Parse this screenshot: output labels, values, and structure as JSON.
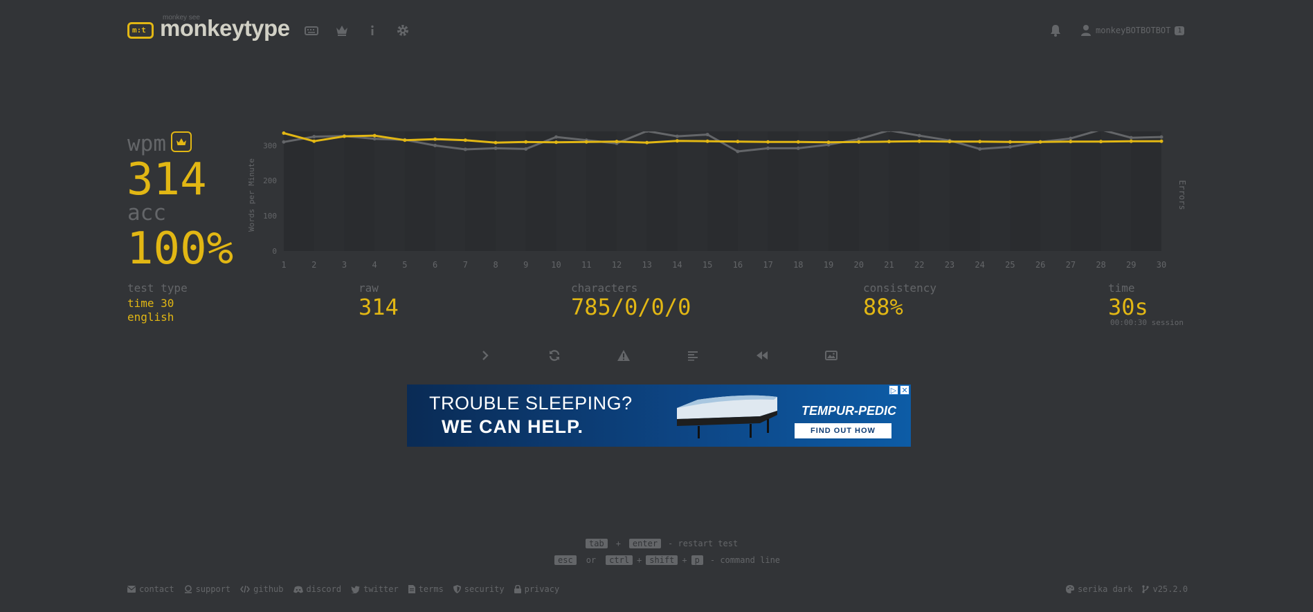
{
  "header": {
    "logo_sub": "monkey see",
    "logo_text": "monkeytype",
    "logo_mark": "m:t",
    "nav_icons": [
      "keyboard-icon",
      "crown-icon",
      "info-icon",
      "gear-icon"
    ],
    "username": "monkeyBOTBOTBOT",
    "user_badge": "1"
  },
  "result": {
    "wpm_label": "wpm",
    "wpm": "314",
    "acc_label": "acc",
    "acc": "100%",
    "test_type_label": "test type",
    "test_type_line1": "time 30",
    "test_type_line2": "english",
    "raw_label": "raw",
    "raw": "314",
    "characters_label": "characters",
    "characters": "785/0/0/0",
    "consistency_label": "consistency",
    "consistency": "88%",
    "time_label": "time",
    "time": "30s",
    "session": "00:00:30 session"
  },
  "chart_data": {
    "type": "line",
    "ylabel": "Words per Minute",
    "y2label": "Errors",
    "ylim": [
      0,
      340
    ],
    "yticks": [
      0,
      100,
      200,
      300
    ],
    "x": [
      1,
      2,
      3,
      4,
      5,
      6,
      7,
      8,
      9,
      10,
      11,
      12,
      13,
      14,
      15,
      16,
      17,
      18,
      19,
      20,
      21,
      22,
      23,
      24,
      25,
      26,
      27,
      28,
      29,
      30
    ],
    "series": [
      {
        "name": "wpm",
        "color": "#e2b714",
        "values": [
          335,
          312,
          326,
          328,
          315,
          318,
          315,
          308,
          310,
          309,
          310,
          311,
          308,
          313,
          312,
          311,
          310,
          310,
          309,
          310,
          311,
          312,
          311,
          311,
          310,
          310,
          311,
          311,
          312,
          312
        ]
      },
      {
        "name": "raw",
        "color": "#646669",
        "values": [
          310,
          325,
          327,
          319,
          316,
          300,
          289,
          292,
          290,
          324,
          315,
          306,
          341,
          326,
          331,
          283,
          292,
          292,
          302,
          318,
          343,
          328,
          314,
          290,
          296,
          310,
          320,
          345,
          322,
          324
        ]
      }
    ]
  },
  "actions": [
    "next-test",
    "repeat-test",
    "practice-words",
    "toggle-words-history",
    "replay",
    "save-screenshot"
  ],
  "ad": {
    "line1": "TROUBLE SLEEPING?",
    "line2": "WE CAN HELP.",
    "brand": "TEMPUR-PEDIC",
    "cta": "FIND OUT HOW"
  },
  "hints": {
    "tab": "tab",
    "plus": "+",
    "enter": "enter",
    "restart": "- restart test",
    "esc": "esc",
    "or": "or",
    "ctrl": "ctrl",
    "shift": "shift",
    "p": "p",
    "command": "- command line"
  },
  "footer": {
    "links": [
      {
        "label": "contact",
        "icon": "envelope-icon"
      },
      {
        "label": "support",
        "icon": "donate-icon"
      },
      {
        "label": "github",
        "icon": "code-icon"
      },
      {
        "label": "discord",
        "icon": "discord-icon"
      },
      {
        "label": "twitter",
        "icon": "twitter-icon"
      },
      {
        "label": "terms",
        "icon": "file-icon"
      },
      {
        "label": "security",
        "icon": "shield-icon"
      },
      {
        "label": "privacy",
        "icon": "lock-icon"
      }
    ],
    "theme": "serika dark",
    "version": "v25.2.0"
  },
  "colors": {
    "bg": "#323437",
    "main": "#e2b714",
    "sub": "#646669",
    "text": "#d1d0c5"
  }
}
